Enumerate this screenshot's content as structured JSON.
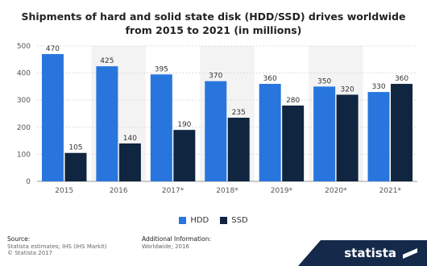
{
  "chart_data": {
    "type": "bar",
    "title": "Shipments of hard and solid state disk (HDD/SSD) drives worldwide from 2015 to 2021 (in millions)",
    "title_line1": "Shipments of hard and solid state disk (HDD/SSD) drives worldwide",
    "title_line2": "from 2015 to 2021 (in millions)",
    "categories": [
      "2015",
      "2016",
      "2017*",
      "2018*",
      "2019*",
      "2020*",
      "2021*"
    ],
    "series": [
      {
        "name": "HDD",
        "values": [
          470,
          425,
          395,
          370,
          360,
          350,
          330
        ],
        "color": "#2876dd"
      },
      {
        "name": "SSD",
        "values": [
          105,
          140,
          190,
          235,
          280,
          320,
          360
        ],
        "color": "#0f2540"
      }
    ],
    "xlabel": "",
    "ylabel": "",
    "ylim": [
      0,
      500
    ],
    "yticks": [
      0,
      100,
      200,
      300,
      400,
      500
    ],
    "grid": true,
    "legend": "bottom-center"
  },
  "footer": {
    "source_heading": "Source:",
    "source_line1": "Statista estimates; IHS (IHS Markit)",
    "source_line2": "© Statista 2017",
    "additional_heading": "Additional Information:",
    "additional_line1": "Worldwide; 2016"
  },
  "brand": {
    "name": "statista",
    "color": "#152a4a"
  }
}
